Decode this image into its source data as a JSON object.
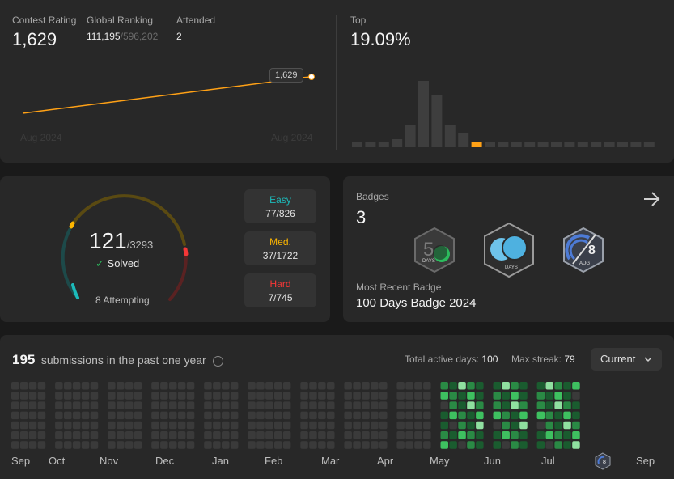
{
  "contest": {
    "rating_label": "Contest Rating",
    "rating_value": "1,629",
    "ranking_label": "Global Ranking",
    "ranking_value": "111,195",
    "ranking_total": "/596,202",
    "attended_label": "Attended",
    "attended_value": "2",
    "tooltip_value": "1,629",
    "x_start_label": "Aug 2024",
    "x_end_label": "Aug 2024",
    "top_label": "Top",
    "top_value": "19.09%",
    "histogram_heights": [
      6,
      6,
      6,
      10,
      28,
      82,
      64,
      28,
      18,
      6,
      6,
      6,
      6,
      6,
      6,
      6,
      6,
      6,
      6,
      6,
      6,
      6,
      6
    ],
    "highlight_index": 9
  },
  "problems": {
    "solved_value": "121",
    "solved_total": "/3293",
    "solved_label": "Solved",
    "attempting_label": "8 Attempting",
    "easy_label": "Easy",
    "easy_value": "77/826",
    "medium_label": "Med.",
    "medium_value": "37/1722",
    "hard_label": "Hard",
    "hard_value": "7/745"
  },
  "badges": {
    "label": "Badges",
    "count": "3",
    "recent_label": "Most Recent Badge",
    "recent_name": "100 Days Badge 2024",
    "badge1_text": "DAYS",
    "badge2_text": "DAYS",
    "badge3_number": "8",
    "badge3_text": "AUG"
  },
  "heatmap": {
    "count": "195",
    "title": "submissions in the past one year",
    "active_days_label": "Total active days:",
    "active_days_value": "100",
    "max_streak_label": "Max streak:",
    "max_streak_value": "79",
    "select_value": "Current",
    "months": [
      "Sep",
      "Oct",
      "Nov",
      "Dec",
      "Jan",
      "Feb",
      "Mar",
      "Apr",
      "May",
      "Jun",
      "Jul",
      "Sep"
    ]
  },
  "colors": {
    "accent_orange": "#ffa116",
    "easy": "#1cbaba",
    "medium": "#ffb700",
    "hard": "#f63737",
    "green": "#2cbb5d"
  }
}
